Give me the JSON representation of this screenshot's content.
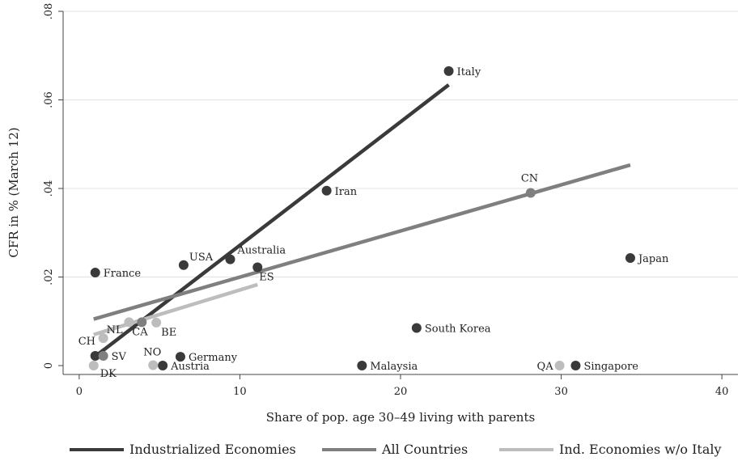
{
  "chart_data": {
    "type": "scatter",
    "xlabel": "Share of pop. age 30–49 living with parents",
    "ylabel": "CFR in % (March 12)",
    "xlim": [
      -1,
      41
    ],
    "ylim": [
      -0.002,
      0.08
    ],
    "xticks": [
      0,
      10,
      20,
      30,
      40
    ],
    "xtick_labels": [
      "0",
      "10",
      "20",
      "30",
      "40"
    ],
    "yticks": [
      0,
      0.02,
      0.04,
      0.06,
      0.08
    ],
    "ytick_labels": [
      "0",
      ".02",
      ".04",
      ".06",
      ".08"
    ],
    "grid": "horizontal",
    "legend_position": "bottom",
    "colors": {
      "dark": "#3a3a3a",
      "medium": "#7f7f7f",
      "light": "#bdbdbd",
      "gridline": "#e3e3e3",
      "axis": "#444444"
    },
    "points": [
      {
        "label": "Italy",
        "x": 23.0,
        "y": 0.0665,
        "group": "dark"
      },
      {
        "label": "Iran",
        "x": 15.4,
        "y": 0.0395,
        "group": "dark"
      },
      {
        "label": "CN",
        "x": 28.1,
        "y": 0.039,
        "group": "medium"
      },
      {
        "label": "Japan",
        "x": 34.3,
        "y": 0.0243,
        "group": "dark"
      },
      {
        "label": "USA",
        "x": 6.5,
        "y": 0.0227,
        "group": "dark"
      },
      {
        "label": "Australia",
        "x": 9.4,
        "y": 0.024,
        "group": "dark"
      },
      {
        "label": "ES",
        "x": 11.1,
        "y": 0.0222,
        "group": "dark"
      },
      {
        "label": "France",
        "x": 1.0,
        "y": 0.021,
        "group": "dark"
      },
      {
        "label": "South Korea",
        "x": 21.0,
        "y": 0.0085,
        "group": "dark"
      },
      {
        "label": "CA",
        "x": 3.9,
        "y": 0.0098,
        "group": "medium"
      },
      {
        "label": "BE",
        "x": 4.8,
        "y": 0.0097,
        "group": "light"
      },
      {
        "label": "NL",
        "x": 1.5,
        "y": 0.0062,
        "group": "light"
      },
      {
        "label": "CH",
        "x": 1.0,
        "y": 0.0022,
        "group": "dark"
      },
      {
        "label": "SV",
        "x": 1.5,
        "y": 0.0022,
        "group": "medium"
      },
      {
        "label": "NO",
        "x": 4.6,
        "y": 0.0001,
        "group": "light"
      },
      {
        "label": "Germany",
        "x": 6.3,
        "y": 0.002,
        "group": "dark"
      },
      {
        "label": "Austria",
        "x": 5.2,
        "y": 0.0,
        "group": "dark"
      },
      {
        "label": "DK",
        "x": 0.9,
        "y": 0.0,
        "group": "light"
      },
      {
        "label": "Malaysia",
        "x": 17.6,
        "y": 0.0,
        "group": "dark"
      },
      {
        "label": "QA",
        "x": 29.9,
        "y": 0.0,
        "group": "light"
      },
      {
        "label": "Singapore",
        "x": 30.9,
        "y": 0.0,
        "group": "dark"
      },
      {
        "label": "",
        "x": 3.1,
        "y": 0.0098,
        "group": "light"
      }
    ],
    "series": [
      {
        "name": "Industrialized Economies",
        "group": "dark",
        "x": [
          0.9,
          23.0
        ],
        "y": [
          0.0018,
          0.0634
        ]
      },
      {
        "name": "All Countries",
        "group": "medium",
        "x": [
          0.9,
          34.3
        ],
        "y": [
          0.0105,
          0.0453
        ]
      },
      {
        "name": "Ind. Economies w/o Italy",
        "group": "light",
        "x": [
          0.9,
          11.1
        ],
        "y": [
          0.007,
          0.0183
        ]
      }
    ]
  }
}
